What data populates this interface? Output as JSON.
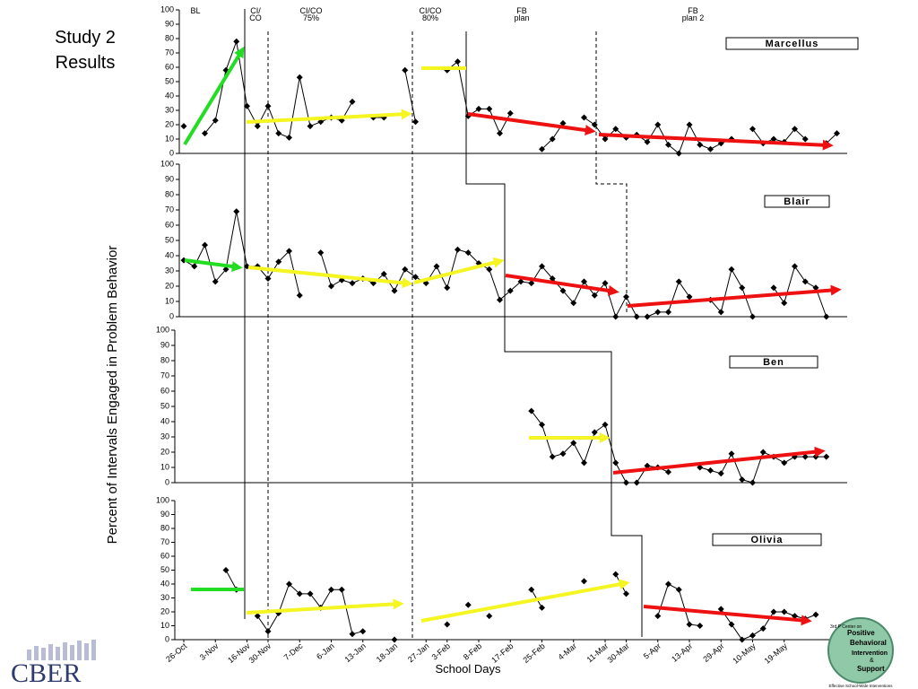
{
  "slide_title": [
    "Study 2",
    "Results"
  ],
  "y_axis_label": "Percent of Intervals Engaged in Problem Behavior",
  "phase_labels": [
    [
      "BL"
    ],
    [
      "CI/",
      "CO"
    ],
    [
      "CI/CO",
      "75%"
    ],
    [
      "CI/CO",
      "80%"
    ],
    [
      "FB",
      "plan"
    ],
    [
      "FB",
      "plan 2"
    ]
  ],
  "chart_data": [
    {
      "type": "line",
      "ylim": [
        0,
        100
      ],
      "yticks": [
        0,
        10,
        20,
        30,
        40,
        50,
        60,
        70,
        80,
        90,
        100
      ],
      "series": [
        {
          "name": "Marcellus",
          "color": "#000000",
          "values": [
            19,
            null,
            14,
            23,
            58,
            78,
            33,
            19,
            33,
            14,
            11,
            53,
            19,
            22,
            25,
            23,
            36,
            null,
            25,
            25,
            null,
            58,
            22,
            null,
            null,
            58,
            64,
            26,
            31,
            31,
            14,
            28,
            null,
            null,
            3,
            10,
            21,
            null,
            25,
            20,
            10,
            17,
            11,
            13,
            8,
            20,
            6,
            0,
            20,
            6,
            3,
            7,
            10,
            null,
            17,
            7,
            10,
            8,
            17,
            10,
            null,
            7,
            14
          ]
        }
      ]
    },
    {
      "type": "line",
      "ylim": [
        0,
        100
      ],
      "yticks": [
        0,
        10,
        20,
        30,
        40,
        50,
        60,
        70,
        80,
        90,
        100
      ],
      "series": [
        {
          "name": "Blair",
          "color": "#000000",
          "values": [
            37,
            33,
            47,
            23,
            31,
            69,
            33,
            33,
            25,
            36,
            43,
            14,
            null,
            42,
            20,
            24,
            22,
            25,
            22,
            28,
            17,
            31,
            26,
            22,
            33,
            19,
            44,
            42,
            35,
            31,
            11,
            17,
            23,
            22,
            33,
            25,
            17,
            9,
            23,
            14,
            22,
            0,
            13,
            0,
            0,
            3,
            3,
            23,
            13,
            null,
            11,
            3,
            31,
            19,
            0,
            null,
            19,
            9,
            33,
            23,
            19,
            0,
            null
          ]
        }
      ]
    },
    {
      "type": "line",
      "ylim": [
        0,
        100
      ],
      "yticks": [
        0,
        10,
        20,
        30,
        40,
        50,
        60,
        70,
        80,
        90,
        100
      ],
      "series": [
        {
          "name": "Ben",
          "color": "#000000",
          "values": [
            null,
            null,
            null,
            null,
            null,
            null,
            null,
            null,
            null,
            null,
            null,
            null,
            null,
            null,
            null,
            null,
            null,
            null,
            null,
            null,
            null,
            null,
            null,
            null,
            null,
            null,
            null,
            null,
            null,
            null,
            null,
            null,
            null,
            47,
            38,
            17,
            19,
            26,
            13,
            33,
            38,
            13,
            0,
            0,
            11,
            10,
            7,
            null,
            null,
            10,
            8,
            6,
            19,
            2,
            0,
            20,
            17,
            13,
            17,
            17,
            17,
            17,
            null
          ]
        }
      ]
    },
    {
      "type": "line",
      "ylim": [
        0,
        100
      ],
      "yticks": [
        0,
        10,
        20,
        30,
        40,
        50,
        60,
        70,
        80,
        90,
        100
      ],
      "x_label": "School Days",
      "categories": [
        "26-Oct",
        null,
        null,
        "3-Nov",
        null,
        null,
        "16-Nov",
        null,
        "30-Nov",
        null,
        null,
        "7-Dec",
        null,
        null,
        "6-Jan",
        null,
        null,
        "13-Jan",
        null,
        null,
        "18-Jan",
        null,
        null,
        "27-Jan",
        null,
        "3-Feb",
        null,
        null,
        "8-Feb",
        null,
        null,
        "17-Feb",
        null,
        null,
        "25-Feb",
        null,
        null,
        "4-Mar",
        null,
        null,
        "11-Mar",
        null,
        "30-Mar",
        null,
        null,
        "5-Apr",
        null,
        null,
        "13-Apr",
        null,
        null,
        "29-Apr",
        null,
        null,
        "10-May",
        null,
        null,
        "19-May",
        null,
        null,
        null,
        null,
        null
      ],
      "series": [
        {
          "name": "Olivia",
          "color": "#000000",
          "values": [
            null,
            null,
            null,
            null,
            50,
            36,
            null,
            17,
            6,
            19,
            40,
            33,
            33,
            23,
            36,
            36,
            4,
            6,
            null,
            null,
            0,
            null,
            null,
            null,
            null,
            11,
            null,
            25,
            null,
            17,
            null,
            null,
            null,
            36,
            23,
            null,
            null,
            null,
            42,
            null,
            null,
            47,
            33,
            null,
            null,
            17,
            40,
            36,
            11,
            10,
            null,
            22,
            11,
            0,
            3,
            8,
            20,
            20,
            17,
            15,
            18,
            null,
            null
          ]
        }
      ]
    }
  ],
  "logos": {
    "left": "CBER",
    "right": [
      "3rd P Center on",
      "Positive",
      "Behavioral",
      "Intervention",
      "&",
      "Support",
      "Effective School-Wide Interventions"
    ]
  }
}
